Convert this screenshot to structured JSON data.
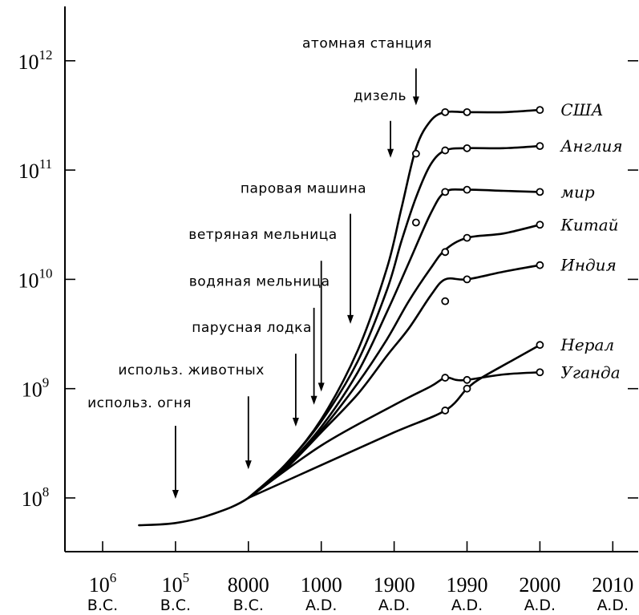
{
  "chart_data": {
    "type": "line",
    "x_scale": "categorical (non-uniform time)",
    "y_scale": "log10",
    "ylim_log10": [
      7.5,
      12.5
    ],
    "grid": false,
    "categories": [
      {
        "top": "10",
        "sup": "6",
        "bottom": "B.C."
      },
      {
        "top": "10",
        "sup": "5",
        "bottom": "B.C."
      },
      {
        "top": "8000",
        "sup": "",
        "bottom": "B.C."
      },
      {
        "top": "1000",
        "sup": "",
        "bottom": "A.D."
      },
      {
        "top": "1900",
        "sup": "",
        "bottom": "A.D."
      },
      {
        "top": "1990",
        "sup": "",
        "bottom": "A.D."
      },
      {
        "top": "2000",
        "sup": "",
        "bottom": "A.D."
      },
      {
        "top": "2010",
        "sup": "",
        "bottom": "A.D."
      }
    ],
    "y_ticks": [
      {
        "base": "10",
        "exp": "8",
        "log10": 8
      },
      {
        "base": "10",
        "exp": "9",
        "log10": 9
      },
      {
        "base": "10",
        "exp": "10",
        "log10": 10
      },
      {
        "base": "10",
        "exp": "11",
        "log10": 11
      },
      {
        "base": "10",
        "exp": "12",
        "log10": 12
      }
    ],
    "series": [
      {
        "name": "США",
        "points": [
          [
            0.5,
            7.75
          ],
          [
            1.0,
            7.77
          ],
          [
            1.5,
            7.85
          ],
          [
            2.0,
            8.0
          ],
          [
            2.5,
            8.3
          ],
          [
            3.0,
            8.72
          ],
          [
            3.5,
            9.35
          ],
          [
            3.9,
            10.1
          ],
          [
            4.1,
            10.65
          ],
          [
            4.3,
            11.2
          ],
          [
            4.5,
            11.45
          ],
          [
            4.7,
            11.53
          ],
          [
            5.0,
            11.53
          ],
          [
            5.5,
            11.53
          ],
          [
            6.0,
            11.55
          ]
        ],
        "markers": [
          [
            4.3,
            11.15
          ],
          [
            4.7,
            11.53
          ],
          [
            5.0,
            11.53
          ],
          [
            6.0,
            11.55
          ]
        ]
      },
      {
        "name": "Англия",
        "points": [
          [
            2.0,
            8.0
          ],
          [
            2.5,
            8.3
          ],
          [
            3.0,
            8.7
          ],
          [
            3.5,
            9.25
          ],
          [
            3.9,
            9.9
          ],
          [
            4.1,
            10.35
          ],
          [
            4.3,
            10.75
          ],
          [
            4.5,
            11.05
          ],
          [
            4.7,
            11.18
          ],
          [
            5.0,
            11.2
          ],
          [
            5.5,
            11.2
          ],
          [
            6.0,
            11.22
          ]
        ],
        "markers": [
          [
            4.3,
            10.52
          ],
          [
            4.7,
            11.18
          ],
          [
            5.0,
            11.2
          ],
          [
            6.0,
            11.22
          ]
        ]
      },
      {
        "name": "мир",
        "points": [
          [
            2.0,
            8.0
          ],
          [
            2.5,
            8.28
          ],
          [
            3.0,
            8.65
          ],
          [
            3.5,
            9.15
          ],
          [
            3.9,
            9.7
          ],
          [
            4.2,
            10.15
          ],
          [
            4.5,
            10.6
          ],
          [
            4.7,
            10.8
          ],
          [
            5.0,
            10.82
          ],
          [
            5.5,
            10.81
          ],
          [
            6.0,
            10.8
          ]
        ],
        "markers": [
          [
            4.7,
            10.8
          ],
          [
            5.0,
            10.82
          ],
          [
            6.0,
            10.8
          ]
        ]
      },
      {
        "name": "Китай",
        "points": [
          [
            2.0,
            8.0
          ],
          [
            2.5,
            8.27
          ],
          [
            3.0,
            8.62
          ],
          [
            3.5,
            9.05
          ],
          [
            3.9,
            9.45
          ],
          [
            4.2,
            9.8
          ],
          [
            4.5,
            10.1
          ],
          [
            4.7,
            10.27
          ],
          [
            5.0,
            10.38
          ],
          [
            5.5,
            10.42
          ],
          [
            6.0,
            10.5
          ]
        ],
        "markers": [
          [
            4.7,
            10.25
          ],
          [
            5.0,
            10.38
          ],
          [
            6.0,
            10.5
          ]
        ]
      },
      {
        "name": "Индия",
        "points": [
          [
            2.0,
            8.0
          ],
          [
            2.5,
            8.26
          ],
          [
            3.0,
            8.6
          ],
          [
            3.5,
            8.95
          ],
          [
            3.9,
            9.3
          ],
          [
            4.2,
            9.55
          ],
          [
            4.5,
            9.85
          ],
          [
            4.7,
            10.0
          ],
          [
            5.0,
            10.0
          ],
          [
            5.5,
            10.07
          ],
          [
            6.0,
            10.13
          ]
        ],
        "markers": [
          [
            4.7,
            9.8
          ],
          [
            5.0,
            10.0
          ],
          [
            6.0,
            10.13
          ]
        ]
      },
      {
        "name": "Нерал",
        "points": [
          [
            2.0,
            8.0
          ],
          [
            3.0,
            8.3
          ],
          [
            4.0,
            8.6
          ],
          [
            4.7,
            8.8
          ],
          [
            5.0,
            9.0
          ],
          [
            5.2,
            9.1
          ],
          [
            5.6,
            9.25
          ],
          [
            6.0,
            9.4
          ]
        ],
        "markers": [
          [
            4.7,
            8.8
          ],
          [
            5.0,
            9.0
          ],
          [
            6.0,
            9.4
          ]
        ]
      },
      {
        "name": "Уганда",
        "points": [
          [
            2.0,
            8.0
          ],
          [
            3.0,
            8.48
          ],
          [
            4.0,
            8.85
          ],
          [
            4.5,
            9.02
          ],
          [
            4.7,
            9.1
          ],
          [
            4.85,
            9.08
          ],
          [
            5.0,
            9.08
          ],
          [
            5.5,
            9.13
          ],
          [
            6.0,
            9.15
          ]
        ],
        "markers": [
          [
            4.7,
            9.1
          ],
          [
            5.0,
            9.08
          ],
          [
            6.0,
            9.15
          ]
        ]
      }
    ],
    "annotations": [
      {
        "text": "атомная станция",
        "x": 4.3,
        "text_log10": 12.12,
        "arrow_from_log10": 11.93,
        "arrow_to_log10": 11.6,
        "anchor": "end"
      },
      {
        "text": "дизель",
        "x": 3.95,
        "text_log10": 11.64,
        "arrow_from_log10": 11.45,
        "arrow_to_log10": 11.12,
        "anchor": "end"
      },
      {
        "text": "паровая машина",
        "x": 3.4,
        "text_log10": 10.79,
        "arrow_from_log10": 10.6,
        "arrow_to_log10": 9.6,
        "anchor": "end"
      },
      {
        "text": "ветряная мельница",
        "x": 3.0,
        "text_log10": 10.37,
        "arrow_from_log10": 10.17,
        "arrow_to_log10": 8.98,
        "anchor": "end"
      },
      {
        "text": "водяная мельница",
        "x": 2.9,
        "text_log10": 9.94,
        "arrow_from_log10": 9.74,
        "arrow_to_log10": 8.86,
        "anchor": "end"
      },
      {
        "text": "парусная лодка",
        "x": 2.65,
        "text_log10": 9.52,
        "arrow_from_log10": 9.32,
        "arrow_to_log10": 8.66,
        "anchor": "end"
      },
      {
        "text": "использ. животных",
        "x": 2.0,
        "text_log10": 9.13,
        "arrow_from_log10": 8.93,
        "arrow_to_log10": 8.27,
        "anchor": "end"
      },
      {
        "text": "использ. огня",
        "x": 1.0,
        "text_log10": 8.83,
        "arrow_from_log10": 8.66,
        "arrow_to_log10": 8.0,
        "anchor": "end"
      }
    ]
  }
}
